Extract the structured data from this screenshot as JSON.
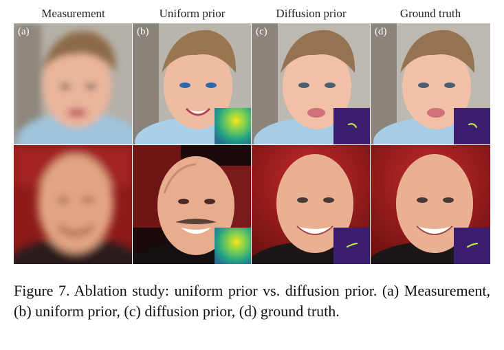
{
  "columns": [
    {
      "header": "Measurement",
      "label": "(a)"
    },
    {
      "header": "Uniform prior",
      "label": "(b)"
    },
    {
      "header": "Diffusion prior",
      "label": "(c)"
    },
    {
      "header": "Ground truth",
      "label": "(d)"
    }
  ],
  "caption": "Figure 7. Ablation study: uniform prior vs. diffusion prior. (a) Measurement, (b) uniform prior, (c) diffusion prior, (d) ground truth.",
  "colors": {
    "inset_background_uniform": "#2a8f8a",
    "inset_background_diffusion": "#3b1f6e",
    "inset_kernel_diffusion": "#b8e84a",
    "toddler_wall": "#b9b4ac",
    "man_background": "#9a1a1a"
  }
}
